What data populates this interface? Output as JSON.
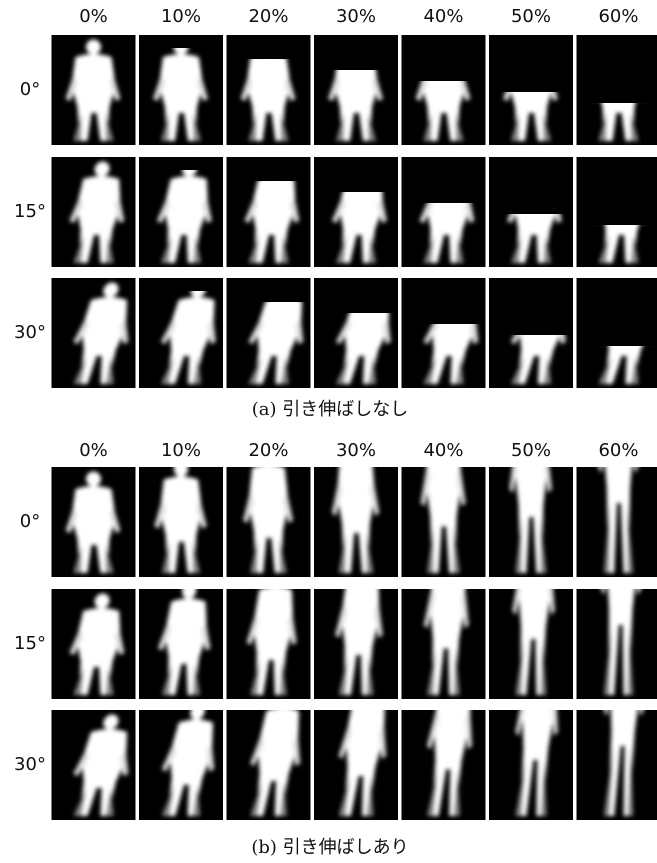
{
  "panels": [
    {
      "columns": [
        "0%",
        "10%",
        "20%",
        "30%",
        "40%",
        "50%",
        "60%"
      ],
      "rows": [
        "0°",
        "15°",
        "30°"
      ],
      "caption": "(a) 引き伸ばしなし"
    },
    {
      "columns": [
        "0%",
        "10%",
        "20%",
        "30%",
        "40%",
        "50%",
        "60%"
      ],
      "rows": [
        "0°",
        "15°",
        "30°"
      ],
      "caption": "(b) 引き伸ばしあり"
    }
  ]
}
